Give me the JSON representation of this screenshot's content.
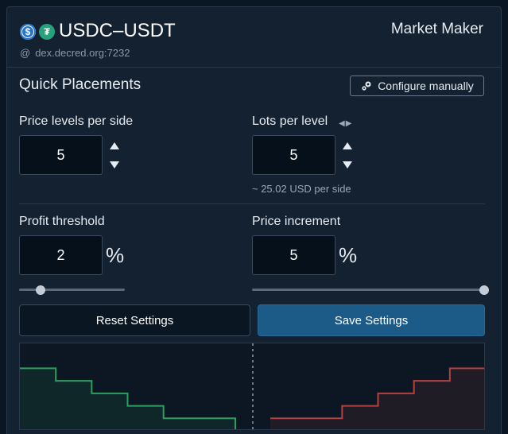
{
  "header": {
    "base_coin_icon": "usdc-icon",
    "quote_coin_icon": "usdt-icon",
    "base_coin_glyph": "$",
    "quote_coin_glyph": "₮",
    "pair": "USDC–USDT",
    "host_prefix": "@",
    "host": "dex.decred.org:7232",
    "bot_type": "Market Maker"
  },
  "quick": {
    "title": "Quick Placements",
    "configure_label": "Configure manually",
    "configure_icon": "gears-icon"
  },
  "fields": {
    "price_levels": {
      "label": "Price levels per side",
      "value": "5"
    },
    "lots": {
      "label": "Lots per level",
      "value": "5",
      "hint": "~ 25.02 USD per side",
      "toggle_glyph": "◀▶"
    },
    "profit": {
      "label": "Profit threshold",
      "value": "2",
      "unit": "%",
      "slider_fraction": 0.2
    },
    "increment": {
      "label": "Price increment",
      "value": "5",
      "unit": "%",
      "slider_fraction": 1.0
    }
  },
  "buttons": {
    "reset": "Reset Settings",
    "save": "Save Settings"
  },
  "colors": {
    "accent": "#1c5a88",
    "buy": "#2e9e5e",
    "sell": "#b3413f"
  },
  "chart_data": {
    "type": "area",
    "series": [
      {
        "side": "buy",
        "x": [
          0,
          1,
          2,
          3,
          4,
          5
        ],
        "y": [
          5,
          4,
          3,
          2,
          1,
          1
        ]
      },
      {
        "side": "sell",
        "x": [
          0,
          1,
          2,
          3,
          4,
          5
        ],
        "y": [
          1,
          1,
          2,
          3,
          4,
          5
        ]
      }
    ],
    "ylim": [
      0,
      7
    ],
    "midline": "dashed"
  }
}
